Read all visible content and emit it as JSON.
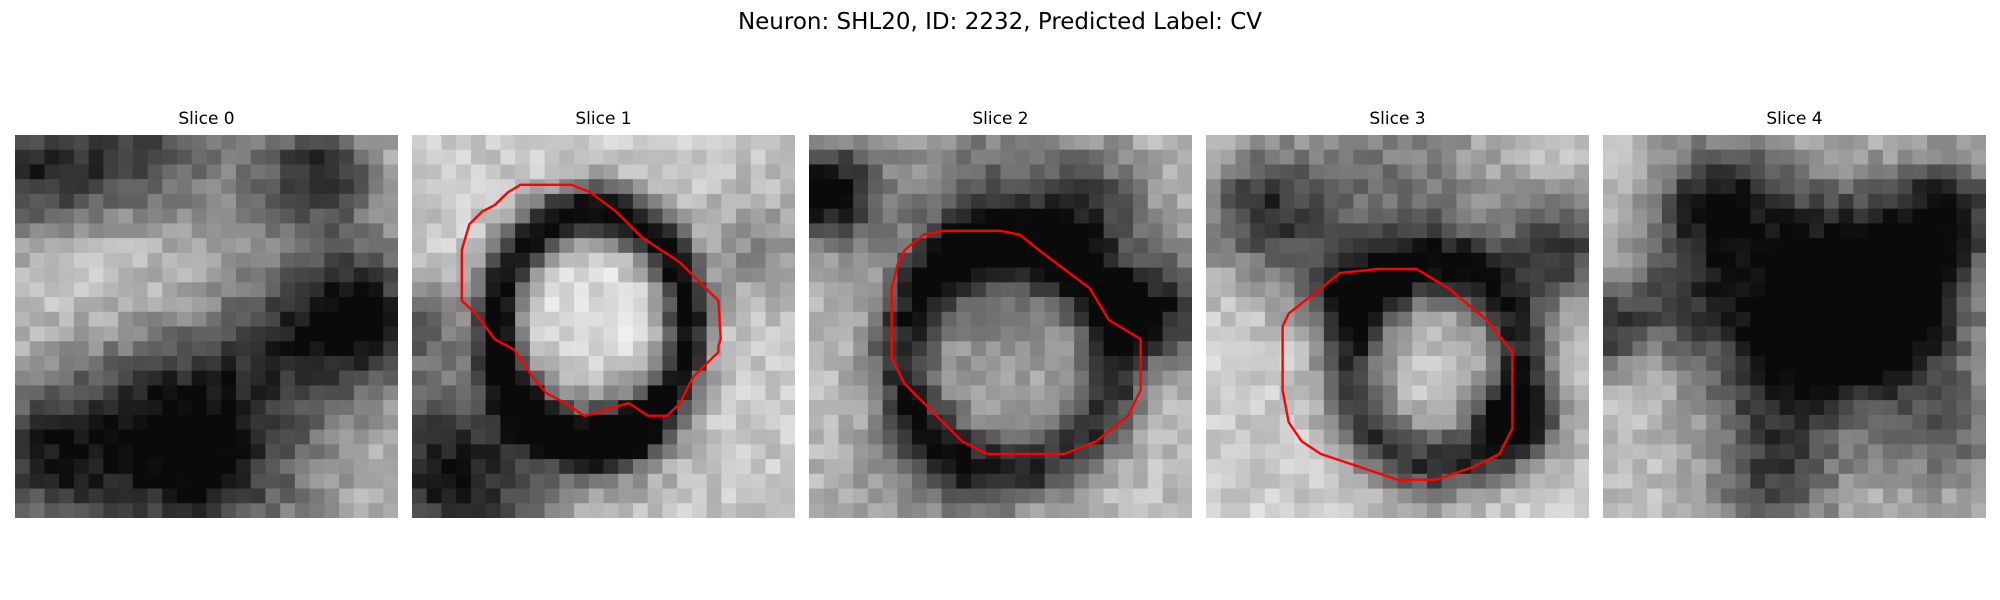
{
  "figure": {
    "title": "Neuron: SHL20, ID: 2232, Predicted Label: CV",
    "outline_color": "#ff0000"
  },
  "panels": [
    {
      "label": "Slice 0",
      "outline": false,
      "image": {
        "base": 0.74,
        "blobs": [
          [
            0.05,
            0.1,
            0.12,
            0.55
          ],
          [
            0.28,
            0.05,
            0.12,
            0.35
          ],
          [
            0.8,
            0.1,
            0.1,
            0.5
          ],
          [
            0.5,
            0.08,
            0.2,
            0.25
          ],
          [
            0.88,
            0.48,
            0.14,
            0.75
          ],
          [
            0.38,
            0.78,
            0.2,
            0.7
          ],
          [
            0.06,
            0.84,
            0.12,
            0.45
          ],
          [
            0.64,
            0.55,
            0.12,
            0.2
          ],
          [
            0.3,
            0.35,
            0.2,
            -0.15
          ],
          [
            0.6,
            0.85,
            0.18,
            0.25
          ]
        ]
      }
    },
    {
      "label": "Slice 1",
      "outline": true,
      "image": {
        "base": 0.78,
        "ring": [
          0.47,
          0.5,
          0.25,
          0.3,
          0.045,
          0.8
        ],
        "blobs": [
          [
            0.12,
            0.88,
            0.18,
            0.7
          ],
          [
            0.0,
            0.5,
            0.08,
            0.4
          ],
          [
            0.9,
            0.3,
            0.1,
            0.25
          ],
          [
            0.55,
            0.78,
            0.1,
            0.3
          ],
          [
            0.45,
            0.48,
            0.2,
            -0.1
          ]
        ]
      }
    },
    {
      "label": "Slice 2",
      "outline": true,
      "image": {
        "base": 0.74,
        "ring": [
          0.52,
          0.58,
          0.28,
          0.3,
          0.06,
          0.55
        ],
        "blobs": [
          [
            0.05,
            0.15,
            0.09,
            0.75
          ],
          [
            0.92,
            0.45,
            0.1,
            0.6
          ],
          [
            0.5,
            0.22,
            0.2,
            0.4
          ],
          [
            0.3,
            0.92,
            0.15,
            0.2
          ],
          [
            0.75,
            0.2,
            0.1,
            0.35
          ],
          [
            0.52,
            0.56,
            0.18,
            0.08
          ]
        ]
      }
    },
    {
      "label": "Slice 3",
      "outline": true,
      "image": {
        "base": 0.8,
        "ring": [
          0.6,
          0.6,
          0.22,
          0.26,
          0.06,
          0.6
        ],
        "blobs": [
          [
            0.15,
            0.2,
            0.12,
            0.55
          ],
          [
            0.92,
            0.3,
            0.1,
            0.6
          ],
          [
            0.5,
            0.15,
            0.2,
            0.35
          ],
          [
            0.82,
            0.75,
            0.08,
            0.55
          ],
          [
            0.35,
            0.4,
            0.08,
            0.45
          ]
        ]
      }
    },
    {
      "label": "Slice 4",
      "outline": false,
      "image": {
        "base": 0.75,
        "blobs": [
          [
            0.6,
            0.4,
            0.18,
            0.75
          ],
          [
            0.75,
            0.45,
            0.14,
            0.7
          ],
          [
            0.3,
            0.18,
            0.12,
            0.65
          ],
          [
            0.9,
            0.2,
            0.1,
            0.6
          ],
          [
            0.0,
            0.5,
            0.08,
            0.55
          ],
          [
            0.45,
            0.6,
            0.15,
            0.45
          ],
          [
            0.45,
            0.9,
            0.12,
            0.45
          ],
          [
            0.2,
            0.42,
            0.1,
            0.35
          ],
          [
            0.9,
            0.78,
            0.12,
            0.35
          ]
        ]
      }
    }
  ]
}
